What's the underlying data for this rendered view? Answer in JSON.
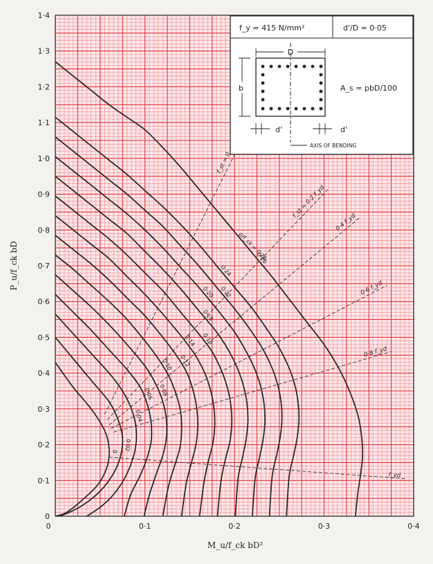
{
  "chart_data": {
    "type": "line",
    "xlabel": "M_u/f_ck bD²",
    "ylabel": "P_u/f_ck bD",
    "xlim": [
      0,
      0.4
    ],
    "ylim": [
      0,
      1.4
    ],
    "grid": true,
    "x_ticks": [
      {
        "value": 0,
        "label": "0"
      },
      {
        "value": 0.1,
        "label": "0·1"
      },
      {
        "value": 0.2,
        "label": "0·2"
      },
      {
        "value": 0.3,
        "label": "0·3"
      },
      {
        "value": 0.4,
        "label": "0·4"
      }
    ],
    "y_ticks": [
      {
        "value": 0,
        "label": "0"
      },
      {
        "value": 0.1,
        "label": "0·1"
      },
      {
        "value": 0.2,
        "label": "0·2"
      },
      {
        "value": 0.3,
        "label": "0·3"
      },
      {
        "value": 0.4,
        "label": "0·4"
      },
      {
        "value": 0.5,
        "label": "0·5"
      },
      {
        "value": 0.6,
        "label": "0·6"
      },
      {
        "value": 0.7,
        "label": "0·7"
      },
      {
        "value": 0.8,
        "label": "0·8"
      },
      {
        "value": 0.9,
        "label": "0·9"
      },
      {
        "value": 1.0,
        "label": "1·0"
      },
      {
        "value": 1.1,
        "label": "1·1"
      },
      {
        "value": 1.2,
        "label": "1·2"
      },
      {
        "value": 1.3,
        "label": "1·3"
      },
      {
        "value": 1.4,
        "label": "1·4"
      }
    ],
    "series_title": "p/f_ck = 0·26",
    "series": [
      {
        "label": "0",
        "points": [
          [
            0.0,
            0.43
          ],
          [
            0.02,
            0.36
          ],
          [
            0.04,
            0.3
          ],
          [
            0.055,
            0.24
          ],
          [
            0.06,
            0.19
          ],
          [
            0.058,
            0.14
          ],
          [
            0.048,
            0.09
          ],
          [
            0.03,
            0.045
          ],
          [
            0.012,
            0.01
          ],
          [
            0.0,
            0.0
          ]
        ]
      },
      {
        "label": "0·02",
        "points": [
          [
            0.0,
            0.5
          ],
          [
            0.02,
            0.44
          ],
          [
            0.04,
            0.38
          ],
          [
            0.06,
            0.32
          ],
          [
            0.07,
            0.27
          ],
          [
            0.075,
            0.22
          ],
          [
            0.073,
            0.17
          ],
          [
            0.065,
            0.12
          ],
          [
            0.05,
            0.07
          ],
          [
            0.03,
            0.03
          ],
          [
            0.01,
            0.005
          ],
          [
            0.0,
            0.0
          ]
        ]
      },
      {
        "label": "0·04",
        "points": [
          [
            0.0,
            0.565
          ],
          [
            0.02,
            0.51
          ],
          [
            0.04,
            0.455
          ],
          [
            0.06,
            0.4
          ],
          [
            0.075,
            0.35
          ],
          [
            0.085,
            0.3
          ],
          [
            0.09,
            0.25
          ],
          [
            0.09,
            0.2
          ],
          [
            0.085,
            0.15
          ],
          [
            0.076,
            0.1
          ],
          [
            0.063,
            0.055
          ],
          [
            0.05,
            0.025
          ],
          [
            0.035,
            0.0
          ]
        ]
      },
      {
        "label": "0·06",
        "points": [
          [
            0.0,
            0.62
          ],
          [
            0.02,
            0.57
          ],
          [
            0.04,
            0.52
          ],
          [
            0.06,
            0.465
          ],
          [
            0.08,
            0.41
          ],
          [
            0.095,
            0.36
          ],
          [
            0.103,
            0.31
          ],
          [
            0.107,
            0.26
          ],
          [
            0.107,
            0.21
          ],
          [
            0.102,
            0.16
          ],
          [
            0.094,
            0.11
          ],
          [
            0.084,
            0.06
          ],
          [
            0.077,
            0.0
          ]
        ]
      },
      {
        "label": "0·08",
        "points": [
          [
            0.0,
            0.675
          ],
          [
            0.02,
            0.63
          ],
          [
            0.04,
            0.585
          ],
          [
            0.06,
            0.535
          ],
          [
            0.08,
            0.48
          ],
          [
            0.1,
            0.42
          ],
          [
            0.112,
            0.37
          ],
          [
            0.12,
            0.32
          ],
          [
            0.124,
            0.27
          ],
          [
            0.124,
            0.22
          ],
          [
            0.12,
            0.17
          ],
          [
            0.113,
            0.12
          ],
          [
            0.105,
            0.06
          ],
          [
            0.099,
            0.0
          ]
        ]
      },
      {
        "label": "0·10",
        "points": [
          [
            0.0,
            0.73
          ],
          [
            0.02,
            0.69
          ],
          [
            0.04,
            0.645
          ],
          [
            0.06,
            0.6
          ],
          [
            0.08,
            0.55
          ],
          [
            0.1,
            0.49
          ],
          [
            0.115,
            0.44
          ],
          [
            0.127,
            0.39
          ],
          [
            0.135,
            0.34
          ],
          [
            0.14,
            0.29
          ],
          [
            0.141,
            0.24
          ],
          [
            0.139,
            0.19
          ],
          [
            0.133,
            0.14
          ],
          [
            0.126,
            0.08
          ],
          [
            0.12,
            0.0
          ]
        ]
      },
      {
        "label": "0·12",
        "points": [
          [
            0.0,
            0.785
          ],
          [
            0.02,
            0.745
          ],
          [
            0.04,
            0.705
          ],
          [
            0.06,
            0.66
          ],
          [
            0.08,
            0.61
          ],
          [
            0.1,
            0.56
          ],
          [
            0.12,
            0.5
          ],
          [
            0.135,
            0.45
          ],
          [
            0.147,
            0.4
          ],
          [
            0.154,
            0.35
          ],
          [
            0.158,
            0.3
          ],
          [
            0.159,
            0.25
          ],
          [
            0.157,
            0.2
          ],
          [
            0.152,
            0.15
          ],
          [
            0.146,
            0.09
          ],
          [
            0.141,
            0.0
          ]
        ]
      },
      {
        "label": "0·14",
        "points": [
          [
            0.0,
            0.84
          ],
          [
            0.02,
            0.8
          ],
          [
            0.04,
            0.76
          ],
          [
            0.06,
            0.72
          ],
          [
            0.08,
            0.67
          ],
          [
            0.1,
            0.62
          ],
          [
            0.12,
            0.565
          ],
          [
            0.14,
            0.505
          ],
          [
            0.155,
            0.455
          ],
          [
            0.166,
            0.405
          ],
          [
            0.173,
            0.355
          ],
          [
            0.177,
            0.305
          ],
          [
            0.178,
            0.255
          ],
          [
            0.176,
            0.205
          ],
          [
            0.171,
            0.155
          ],
          [
            0.166,
            0.095
          ],
          [
            0.161,
            0.0
          ]
        ]
      },
      {
        "label": "0·16",
        "points": [
          [
            0.0,
            0.895
          ],
          [
            0.02,
            0.855
          ],
          [
            0.04,
            0.815
          ],
          [
            0.06,
            0.775
          ],
          [
            0.08,
            0.73
          ],
          [
            0.1,
            0.68
          ],
          [
            0.12,
            0.63
          ],
          [
            0.14,
            0.57
          ],
          [
            0.16,
            0.51
          ],
          [
            0.175,
            0.46
          ],
          [
            0.185,
            0.41
          ],
          [
            0.192,
            0.36
          ],
          [
            0.196,
            0.31
          ],
          [
            0.197,
            0.26
          ],
          [
            0.195,
            0.21
          ],
          [
            0.19,
            0.16
          ],
          [
            0.185,
            0.1
          ],
          [
            0.181,
            0.0
          ]
        ]
      },
      {
        "label": "0·18",
        "points": [
          [
            0.0,
            0.95
          ],
          [
            0.02,
            0.91
          ],
          [
            0.04,
            0.87
          ],
          [
            0.06,
            0.83
          ],
          [
            0.08,
            0.79
          ],
          [
            0.1,
            0.74
          ],
          [
            0.12,
            0.69
          ],
          [
            0.14,
            0.635
          ],
          [
            0.16,
            0.575
          ],
          [
            0.18,
            0.515
          ],
          [
            0.193,
            0.465
          ],
          [
            0.203,
            0.415
          ],
          [
            0.21,
            0.365
          ],
          [
            0.214,
            0.315
          ],
          [
            0.215,
            0.265
          ],
          [
            0.213,
            0.215
          ],
          [
            0.209,
            0.165
          ],
          [
            0.204,
            0.105
          ],
          [
            0.201,
            0.0
          ]
        ]
      },
      {
        "label": "0·20",
        "points": [
          [
            0.0,
            1.005
          ],
          [
            0.02,
            0.965
          ],
          [
            0.04,
            0.925
          ],
          [
            0.06,
            0.885
          ],
          [
            0.08,
            0.845
          ],
          [
            0.1,
            0.8
          ],
          [
            0.12,
            0.75
          ],
          [
            0.14,
            0.695
          ],
          [
            0.16,
            0.64
          ],
          [
            0.18,
            0.58
          ],
          [
            0.2,
            0.515
          ],
          [
            0.212,
            0.465
          ],
          [
            0.222,
            0.415
          ],
          [
            0.229,
            0.365
          ],
          [
            0.233,
            0.315
          ],
          [
            0.234,
            0.265
          ],
          [
            0.232,
            0.215
          ],
          [
            0.228,
            0.165
          ],
          [
            0.223,
            0.105
          ],
          [
            0.22,
            0.0
          ]
        ]
      },
      {
        "label": "0·22",
        "points": [
          [
            0.0,
            1.06
          ],
          [
            0.02,
            1.02
          ],
          [
            0.04,
            0.98
          ],
          [
            0.06,
            0.94
          ],
          [
            0.08,
            0.9
          ],
          [
            0.1,
            0.855
          ],
          [
            0.12,
            0.81
          ],
          [
            0.14,
            0.755
          ],
          [
            0.16,
            0.7
          ],
          [
            0.18,
            0.64
          ],
          [
            0.2,
            0.58
          ],
          [
            0.218,
            0.52
          ],
          [
            0.231,
            0.47
          ],
          [
            0.241,
            0.42
          ],
          [
            0.248,
            0.37
          ],
          [
            0.252,
            0.32
          ],
          [
            0.253,
            0.27
          ],
          [
            0.251,
            0.22
          ],
          [
            0.247,
            0.17
          ],
          [
            0.242,
            0.11
          ],
          [
            0.239,
            0.0
          ]
        ]
      },
      {
        "label": "0·24",
        "points": [
          [
            0.0,
            1.115
          ],
          [
            0.02,
            1.075
          ],
          [
            0.04,
            1.035
          ],
          [
            0.06,
            0.995
          ],
          [
            0.08,
            0.955
          ],
          [
            0.1,
            0.91
          ],
          [
            0.12,
            0.865
          ],
          [
            0.14,
            0.815
          ],
          [
            0.16,
            0.76
          ],
          [
            0.18,
            0.7
          ],
          [
            0.2,
            0.64
          ],
          [
            0.22,
            0.58
          ],
          [
            0.237,
            0.52
          ],
          [
            0.25,
            0.47
          ],
          [
            0.26,
            0.42
          ],
          [
            0.267,
            0.37
          ],
          [
            0.271,
            0.32
          ],
          [
            0.272,
            0.27
          ],
          [
            0.27,
            0.22
          ],
          [
            0.266,
            0.17
          ],
          [
            0.261,
            0.11
          ],
          [
            0.258,
            0.0
          ]
        ]
      },
      {
        "label": "0·26",
        "points": [
          [
            0.0,
            1.27
          ],
          [
            0.02,
            1.23
          ],
          [
            0.04,
            1.19
          ],
          [
            0.06,
            1.15
          ],
          [
            0.08,
            1.115
          ],
          [
            0.1,
            1.08
          ],
          [
            0.12,
            1.03
          ],
          [
            0.14,
            0.975
          ],
          [
            0.16,
            0.915
          ],
          [
            0.18,
            0.855
          ],
          [
            0.2,
            0.795
          ],
          [
            0.22,
            0.735
          ],
          [
            0.24,
            0.675
          ],
          [
            0.26,
            0.61
          ],
          [
            0.28,
            0.545
          ],
          [
            0.3,
            0.48
          ],
          [
            0.315,
            0.42
          ],
          [
            0.325,
            0.37
          ],
          [
            0.333,
            0.32
          ],
          [
            0.339,
            0.27
          ],
          [
            0.342,
            0.22
          ],
          [
            0.343,
            0.17
          ],
          [
            0.341,
            0.12
          ],
          [
            0.338,
            0.07
          ],
          [
            0.335,
            0.0
          ]
        ]
      }
    ],
    "strain_lines": [
      {
        "label": "f_st = 0",
        "points": [
          [
            0.055,
            0.285
          ],
          [
            0.2,
            1.01
          ]
        ]
      },
      {
        "label": "f_st = 0·2 f_yd",
        "points": [
          [
            0.058,
            0.27
          ],
          [
            0.305,
            0.915
          ]
        ]
      },
      {
        "label": "0·4 f_yd",
        "points": [
          [
            0.06,
            0.255
          ],
          [
            0.34,
            0.835
          ]
        ]
      },
      {
        "label": "0·6 f_yd",
        "points": [
          [
            0.062,
            0.245
          ],
          [
            0.37,
            0.645
          ]
        ]
      },
      {
        "label": "0·8 f_yd",
        "points": [
          [
            0.065,
            0.235
          ],
          [
            0.375,
            0.46
          ]
        ]
      },
      {
        "label": "f_yd",
        "points": [
          [
            0.06,
            0.165
          ],
          [
            0.39,
            0.105
          ]
        ]
      }
    ],
    "inset": {
      "fy": "f_y = 415 N/mm²",
      "ratio": "d'/D = 0·05",
      "dim_D": "D",
      "dim_b": "b",
      "dim_d1": "d'",
      "dim_d2": "d'",
      "area": "A_s = pbD/100",
      "axis": "AXIS OF BENDING"
    }
  }
}
